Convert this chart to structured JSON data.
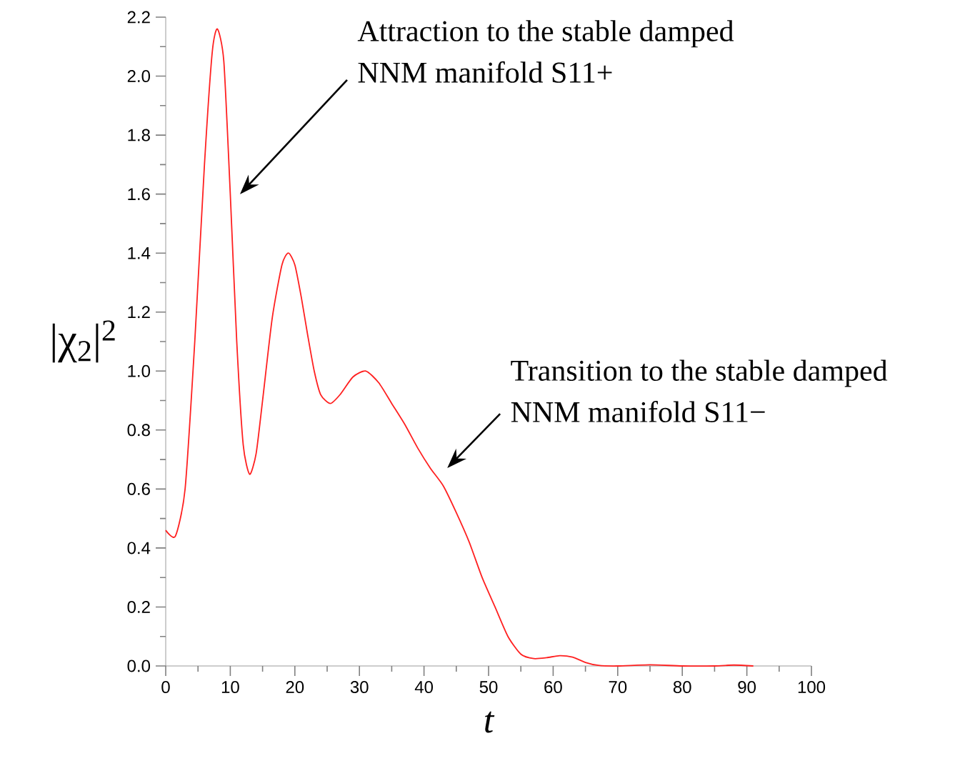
{
  "chart_data": {
    "type": "line",
    "xlabel": "t",
    "ylabel": "|χ$_{2}$|$^{2}$",
    "x": [
      0,
      1.5,
      3,
      4.5,
      6,
      7.2,
      8,
      9,
      10,
      11,
      12,
      13,
      14,
      15,
      16.5,
      18,
      19,
      20,
      21,
      22,
      23,
      24,
      25.5,
      27,
      29,
      31,
      33,
      35,
      37,
      39,
      41,
      43,
      45,
      47,
      49,
      51,
      53,
      55,
      57,
      59,
      61,
      63,
      65,
      67,
      70,
      75,
      80,
      85,
      88,
      91
    ],
    "series": [
      {
        "color": "#ff2020",
        "values": [
          0.46,
          0.44,
          0.6,
          1.1,
          1.7,
          2.08,
          2.16,
          2.05,
          1.6,
          1.1,
          0.75,
          0.65,
          0.72,
          0.9,
          1.18,
          1.36,
          1.4,
          1.36,
          1.25,
          1.12,
          1.0,
          0.92,
          0.89,
          0.92,
          0.98,
          1.0,
          0.96,
          0.89,
          0.82,
          0.74,
          0.67,
          0.61,
          0.52,
          0.42,
          0.3,
          0.2,
          0.1,
          0.04,
          0.025,
          0.028,
          0.035,
          0.03,
          0.012,
          0.002,
          0,
          0.004,
          0,
          0,
          0.003,
          0
        ]
      }
    ],
    "xlim": [
      0,
      100
    ],
    "ylim": [
      0,
      2.2
    ],
    "xticks": [
      0,
      10,
      20,
      30,
      40,
      50,
      60,
      70,
      80,
      90,
      100
    ],
    "yticks": [
      {
        "value": 0,
        "label": "0.0"
      },
      {
        "value": 0.2,
        "label": "0.2"
      },
      {
        "value": 0.4,
        "label": "0.4"
      },
      {
        "value": 0.6,
        "label": "0.6"
      },
      {
        "value": 0.8,
        "label": "0.8"
      },
      {
        "value": 1.0,
        "label": "1.0"
      },
      {
        "value": 1.2,
        "label": "1.2"
      },
      {
        "value": 1.4,
        "label": "1.4"
      },
      {
        "value": 1.6,
        "label": "1.6"
      },
      {
        "value": 1.8,
        "label": "1.8"
      },
      {
        "value": 2.0,
        "label": "2.0"
      },
      {
        "value": 2.2,
        "label": "2.2"
      }
    ],
    "grid": false,
    "legend": false,
    "marker": "none",
    "line_style": "solid",
    "annotations": [
      "Attraction to the stable damped NNM manifold S11+",
      "Transition to the stable damped NNM manifold S11−"
    ]
  }
}
